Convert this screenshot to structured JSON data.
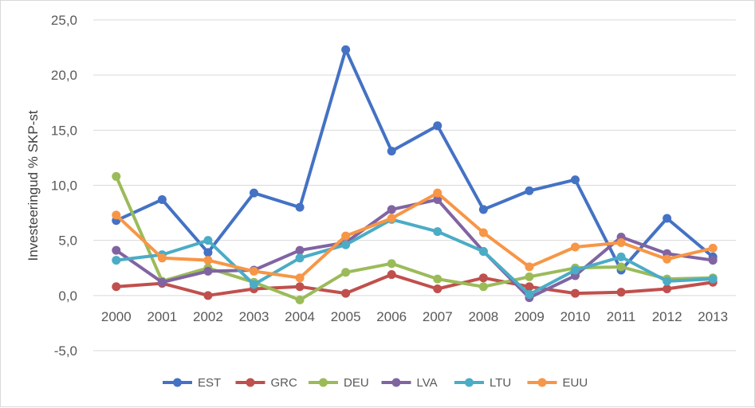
{
  "chart_data": {
    "type": "line",
    "title": "",
    "xlabel": "",
    "ylabel": "Investeeringud % SKP-st",
    "categories": [
      "2000",
      "2001",
      "2002",
      "2003",
      "2004",
      "2005",
      "2006",
      "2007",
      "2008",
      "2009",
      "2010",
      "2011",
      "2012",
      "2013"
    ],
    "ylim": [
      -5,
      25
    ],
    "yticks": [
      "-5,0",
      "0,0",
      "5,0",
      "10,0",
      "15,0",
      "20,0",
      "25,0"
    ],
    "grid": true,
    "legend_position": "bottom",
    "series": [
      {
        "name": "EST",
        "color": "#4472c4",
        "values": [
          6.8,
          8.7,
          3.9,
          9.3,
          8.0,
          22.3,
          13.1,
          15.4,
          7.8,
          9.5,
          10.5,
          2.3,
          7.0,
          3.5
        ]
      },
      {
        "name": "GRC",
        "color": "#c0504d",
        "values": [
          0.8,
          1.1,
          0.0,
          0.6,
          0.8,
          0.2,
          1.9,
          0.6,
          1.6,
          0.8,
          0.2,
          0.3,
          0.6,
          1.2
        ]
      },
      {
        "name": "DEU",
        "color": "#9bbb59",
        "values": [
          10.8,
          1.3,
          2.5,
          1.2,
          -0.4,
          2.1,
          2.9,
          1.5,
          0.8,
          1.7,
          2.5,
          2.6,
          1.5,
          1.6
        ]
      },
      {
        "name": "LVA",
        "color": "#8064a2",
        "values": [
          4.1,
          1.2,
          2.2,
          2.3,
          4.1,
          4.8,
          7.8,
          8.7,
          4.0,
          -0.2,
          1.8,
          5.3,
          3.8,
          3.2
        ]
      },
      {
        "name": "LTU",
        "color": "#4bacc6",
        "values": [
          3.2,
          3.7,
          5.0,
          1.0,
          3.4,
          4.6,
          6.9,
          5.8,
          4.0,
          0.1,
          2.3,
          3.5,
          1.3,
          1.5
        ]
      },
      {
        "name": "EUU",
        "color": "#f79646",
        "values": [
          7.3,
          3.4,
          3.2,
          2.2,
          1.6,
          5.4,
          7.0,
          9.3,
          5.7,
          2.6,
          4.4,
          4.8,
          3.3,
          4.3
        ]
      }
    ]
  }
}
